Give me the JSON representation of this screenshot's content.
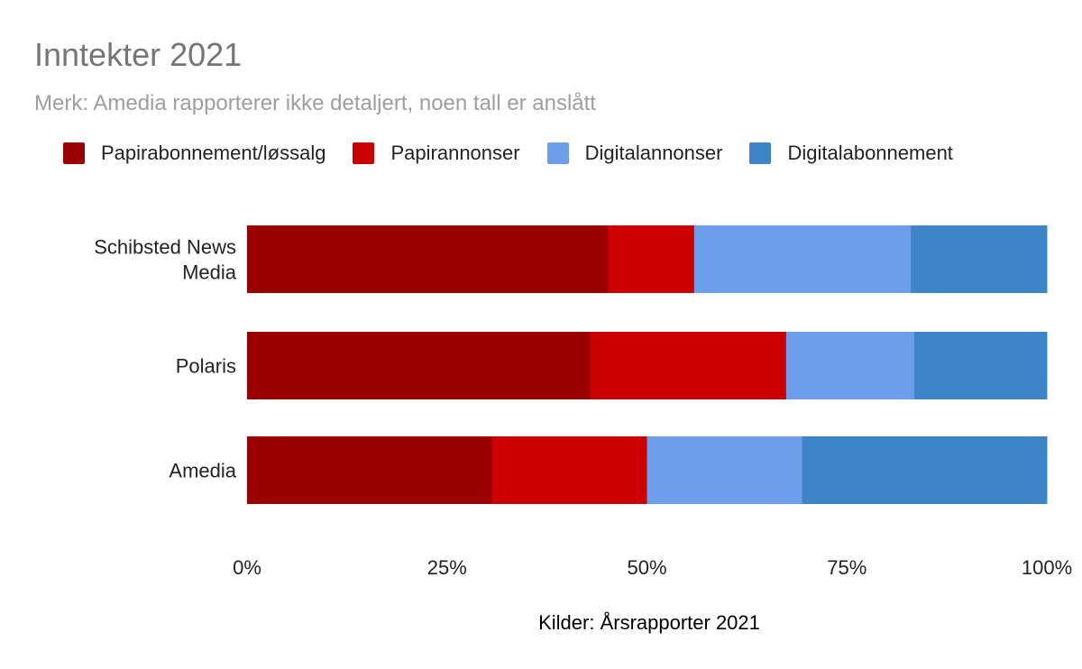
{
  "chart_data": {
    "type": "bar",
    "orientation": "horizontal",
    "stacked": "percent",
    "title": "Inntekter 2021",
    "subtitle": "Merk: Amedia rapporterer ikke detaljert, noen tall er anslått",
    "categories": [
      [
        "Schibsted News",
        "Media"
      ],
      [
        "Polaris"
      ],
      [
        "Amedia"
      ]
    ],
    "series": [
      {
        "name": "Papirabonnement/løssalg",
        "color": "#990000",
        "values": [
          45.1,
          42.9,
          30.6
        ]
      },
      {
        "name": "Papirannonser",
        "color": "#cc0000",
        "values": [
          10.8,
          24.5,
          19.4
        ]
      },
      {
        "name": "Digitalannonser",
        "color": "#6d9eeb",
        "values": [
          27.1,
          16.0,
          19.4
        ]
      },
      {
        "name": "Digitalabonnement",
        "color": "#3d85c6",
        "values": [
          17.0,
          16.6,
          30.6
        ]
      }
    ],
    "xticks": [
      "0%",
      "25%",
      "50%",
      "75%",
      "100%"
    ],
    "xlim": [
      0,
      100
    ],
    "xlabel": "Kilder: Årsrapporter 2021",
    "legend": "top"
  }
}
